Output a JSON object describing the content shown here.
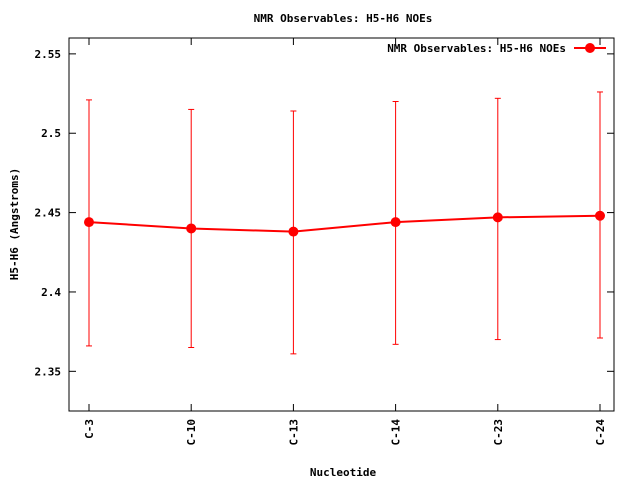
{
  "chart_data": {
    "type": "line",
    "title": "NMR Observables: H5-H6 NOEs",
    "xlabel": "Nucleotide",
    "ylabel": "H5-H6 (Angstroms)",
    "ylim": [
      2.325,
      2.56
    ],
    "yticks": [
      2.35,
      2.4,
      2.45,
      2.5,
      2.55
    ],
    "ytick_labels": [
      "2.35",
      "2.4",
      "2.45",
      "2.5",
      "2.55"
    ],
    "categories": [
      "C-3",
      "C-10",
      "C-13",
      "C-14",
      "C-23",
      "C-24"
    ],
    "legend_position": "top-right",
    "grid": false,
    "series": [
      {
        "name": "NMR Observables: H5-H6 NOEs",
        "color": "#ff0000",
        "values": [
          2.444,
          2.44,
          2.438,
          2.444,
          2.447,
          2.448
        ],
        "err_low": [
          2.366,
          2.365,
          2.361,
          2.367,
          2.37,
          2.371
        ],
        "err_high": [
          2.521,
          2.515,
          2.514,
          2.52,
          2.522,
          2.526
        ]
      }
    ]
  }
}
